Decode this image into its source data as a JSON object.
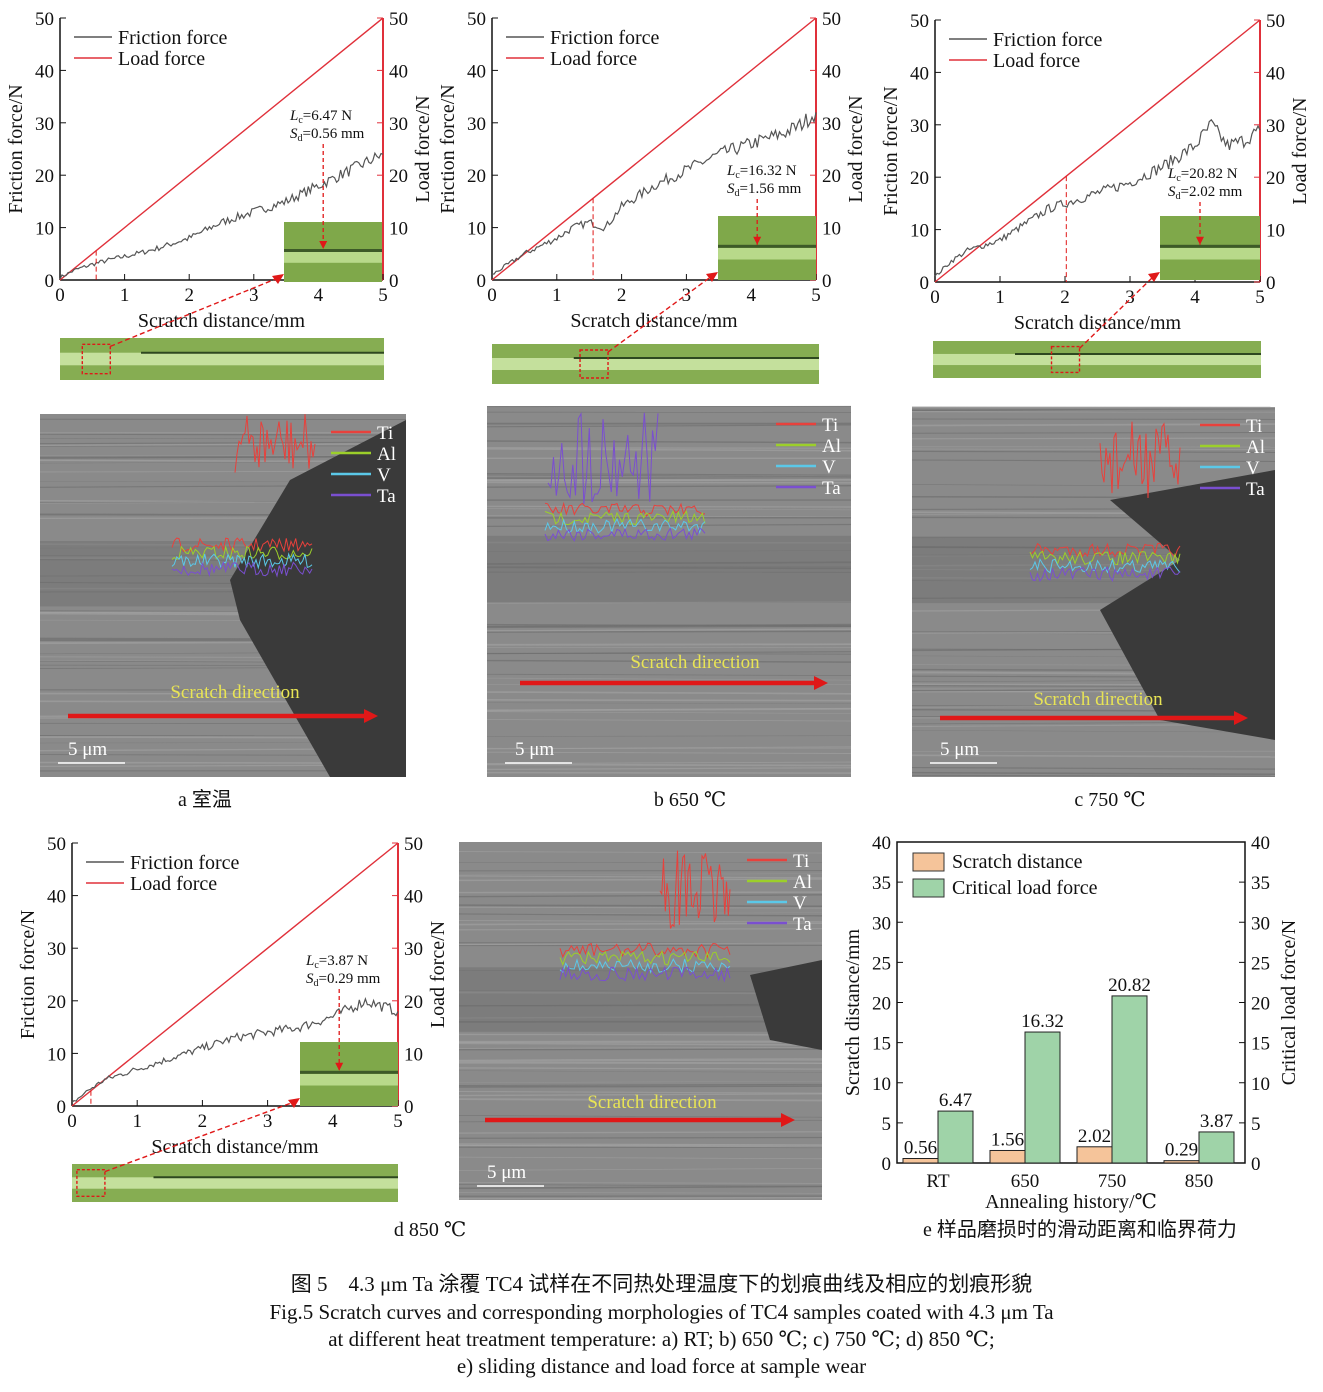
{
  "shared": {
    "legend": [
      "Friction force",
      "Load force"
    ],
    "xlabel": "Scratch distance/mm",
    "ylabel_left": "Friction force/N",
    "ylabel_right": "Load force/N",
    "xlim": [
      0,
      5
    ],
    "ylim": [
      0,
      50
    ],
    "xticks": [
      0,
      1,
      2,
      3,
      4,
      5
    ],
    "yticks": [
      0,
      10,
      20,
      30,
      40,
      50
    ],
    "friction_color": "#555555",
    "load_color": "#e0303a",
    "lc_symbol": "L",
    "lc_sub": "c",
    "sd_symbol": "S",
    "sd_sub": "d",
    "force_unit": "N",
    "distance_unit": "mm"
  },
  "micrograph": {
    "eds_elements": [
      "Ti",
      "Al",
      "V",
      "Ta"
    ],
    "eds_colors": [
      "#e8413c",
      "#9ccf2a",
      "#5bc8e8",
      "#7a4fd0"
    ],
    "direction_label": "Scratch direction",
    "scale_bar": "5 μm",
    "label_color": "#e8e455",
    "arrow_color": "#e01818"
  },
  "chart_data": [
    {
      "panel": "a",
      "type": "line",
      "caption_letter": "a",
      "caption": "室温",
      "lc": 6.47,
      "sd": 0.56,
      "friction": {
        "x": [
          0,
          0.25,
          0.5,
          0.75,
          1,
          1.25,
          1.5,
          1.75,
          2,
          2.25,
          2.5,
          2.75,
          3,
          3.25,
          3.5,
          3.75,
          4,
          4.25,
          4.5,
          4.75,
          5
        ],
        "y": [
          0.5,
          2,
          3,
          3.8,
          4.5,
          5.2,
          6,
          7,
          8,
          9.5,
          11,
          12,
          13,
          14,
          15,
          16.5,
          18,
          19.5,
          21,
          22.5,
          24
        ]
      },
      "load": {
        "x": [
          0,
          5
        ],
        "y": [
          0,
          50
        ]
      }
    },
    {
      "panel": "b",
      "type": "line",
      "caption_letter": "b",
      "caption": "650 ℃",
      "lc": 16.32,
      "sd": 1.56,
      "friction": {
        "x": [
          0,
          0.25,
          0.5,
          0.75,
          1,
          1.25,
          1.5,
          1.75,
          2,
          2.25,
          2.5,
          2.75,
          3,
          3.25,
          3.5,
          3.75,
          4,
          4.25,
          4.5,
          4.75,
          5
        ],
        "y": [
          1,
          3,
          5,
          6.5,
          8,
          10,
          11,
          10,
          14,
          16,
          18,
          19.5,
          21,
          22.5,
          24,
          25,
          26,
          27,
          28,
          29.5,
          32
        ]
      },
      "load": {
        "x": [
          0,
          5
        ],
        "y": [
          0,
          50
        ]
      }
    },
    {
      "panel": "c",
      "type": "line",
      "caption_letter": "c",
      "caption": "750 ℃",
      "lc": 20.82,
      "sd": 2.02,
      "friction": {
        "x": [
          0,
          0.25,
          0.5,
          0.75,
          1,
          1.25,
          1.5,
          1.75,
          2,
          2.25,
          2.5,
          2.75,
          3,
          3.25,
          3.5,
          3.75,
          4,
          4.25,
          4.5,
          4.75,
          5
        ],
        "y": [
          1,
          4,
          6,
          7,
          8,
          10,
          12,
          14,
          15,
          16,
          17,
          18,
          19,
          20.5,
          22,
          24,
          26,
          30,
          26,
          27,
          29
        ]
      },
      "load": {
        "x": [
          0,
          5
        ],
        "y": [
          0,
          50
        ]
      }
    },
    {
      "panel": "d",
      "type": "line",
      "caption_letter": "d",
      "caption": "850 ℃",
      "lc": 3.87,
      "sd": 0.29,
      "friction": {
        "x": [
          0,
          0.25,
          0.5,
          0.75,
          1,
          1.25,
          1.5,
          1.75,
          2,
          2.25,
          2.5,
          2.75,
          3,
          3.25,
          3.5,
          3.75,
          4,
          4.25,
          4.5,
          4.75,
          5
        ],
        "y": [
          0.5,
          3,
          5,
          6,
          7,
          8,
          9,
          10,
          11,
          12,
          13,
          13.5,
          14,
          14.5,
          15,
          16,
          17,
          18.5,
          20,
          19,
          18
        ]
      },
      "load": {
        "x": [
          0,
          5
        ],
        "y": [
          0,
          50
        ]
      }
    },
    {
      "panel": "e",
      "type": "bar",
      "caption_letter": "e",
      "caption": "样品磨损时的滑动距离和临界荷力",
      "categories": [
        "RT",
        "650",
        "750",
        "850"
      ],
      "series": [
        {
          "name": "Scratch distance",
          "values": [
            0.56,
            1.56,
            2.02,
            0.29
          ],
          "labels": [
            "0.56",
            "1.56",
            "2.02",
            "0.29"
          ],
          "color": "#f5c49a"
        },
        {
          "name": "Critical load force",
          "values": [
            6.47,
            16.32,
            20.82,
            3.87
          ],
          "labels": [
            "6.47",
            "16.32",
            "20.82",
            "3.87"
          ],
          "color": "#9fd3a8"
        }
      ],
      "xlabel": "Annealing history/℃",
      "ylabel": "Scratch distance/mm",
      "ylabel_right": "Critical load force/N",
      "ylim": [
        0,
        40
      ],
      "yticks": [
        0,
        5,
        10,
        15,
        20,
        25,
        30,
        35,
        40
      ],
      "legend_placement": "top-left"
    }
  ],
  "figure_caption": {
    "cn": "图 5　4.3 μm Ta 涂覆 TC4 试样在不同热处理温度下的划痕曲线及相应的划痕形貌",
    "en1": "Fig.5 Scratch curves and corresponding morphologies of TC4 samples coated with 4.3 μm Ta",
    "en2": "at different heat treatment temperature: a) RT; b) 650 ℃; c) 750 ℃; d) 850 ℃;",
    "en3": "e) sliding distance and load force at sample wear"
  }
}
